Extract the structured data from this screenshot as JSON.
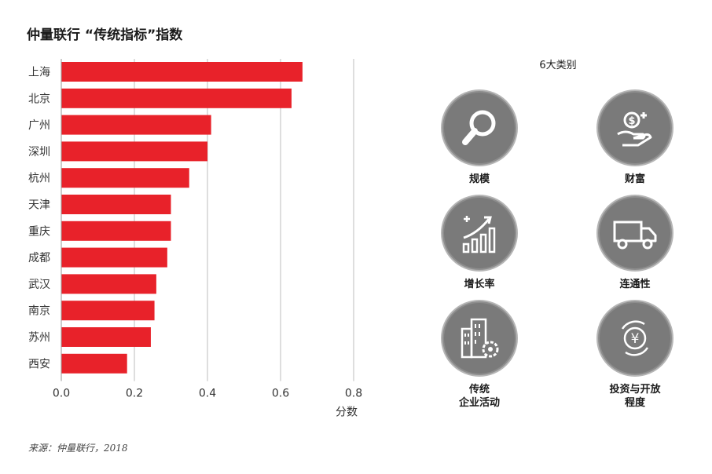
{
  "title": "仲量联行 “传统指标”指数",
  "source": "来源：仲量联行，2018",
  "chart_data": {
    "type": "bar",
    "orientation": "horizontal",
    "categories": [
      "上海",
      "北京",
      "广州",
      "深圳",
      "杭州",
      "天津",
      "重庆",
      "成都",
      "武汉",
      "南京",
      "苏州",
      "西安"
    ],
    "values": [
      0.66,
      0.63,
      0.41,
      0.4,
      0.35,
      0.3,
      0.3,
      0.29,
      0.26,
      0.255,
      0.245,
      0.18
    ],
    "xlabel": "分数",
    "xlim": [
      0,
      0.8
    ],
    "xticks": [
      "0.0",
      "0.2",
      "0.4",
      "0.6",
      "0.8"
    ],
    "grid": "vertical",
    "bar_color": "#e8222a"
  },
  "categories_panel": {
    "title": "6大类别",
    "items": [
      {
        "label": "规模",
        "icon": "magnifier-icon"
      },
      {
        "label": "财富",
        "icon": "money-hand-icon"
      },
      {
        "label": "增长率",
        "icon": "growth-chart-icon"
      },
      {
        "label": "连通性",
        "icon": "truck-icon"
      },
      {
        "label": "传统\n企业活动",
        "icon": "building-gear-icon"
      },
      {
        "label": "投资与开放\n程度",
        "icon": "yuan-cycle-icon"
      }
    ]
  },
  "colors": {
    "bar": "#e8222a",
    "icon_circle": "#7a7a7a",
    "grid": "#bdbdbd"
  }
}
